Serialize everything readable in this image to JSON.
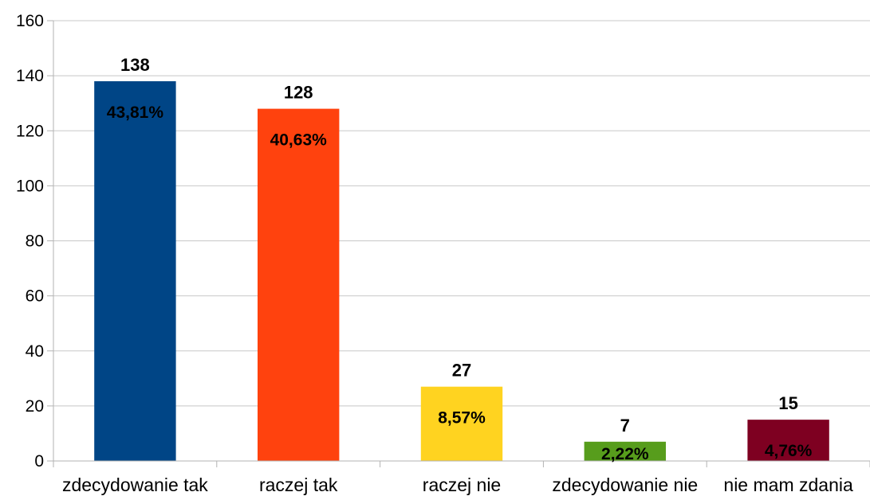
{
  "chart_data": {
    "type": "bar",
    "title": "",
    "xlabel": "",
    "ylabel": "",
    "ylim": [
      0,
      160
    ],
    "yticks": [
      0,
      20,
      40,
      60,
      80,
      100,
      120,
      140,
      160
    ],
    "grid": true,
    "categories": [
      "zdecydowanie tak",
      "raczej tak",
      "raczej nie",
      "zdecydowanie nie",
      "nie mam zdania"
    ],
    "values": [
      138,
      128,
      27,
      7,
      15
    ],
    "percent_labels": [
      "43,81%",
      "40,63%",
      "8,57%",
      "2,22%",
      "4,76%"
    ],
    "colors": [
      "#004586",
      "#ff420e",
      "#ffd320",
      "#579d1c",
      "#7e0021"
    ]
  }
}
